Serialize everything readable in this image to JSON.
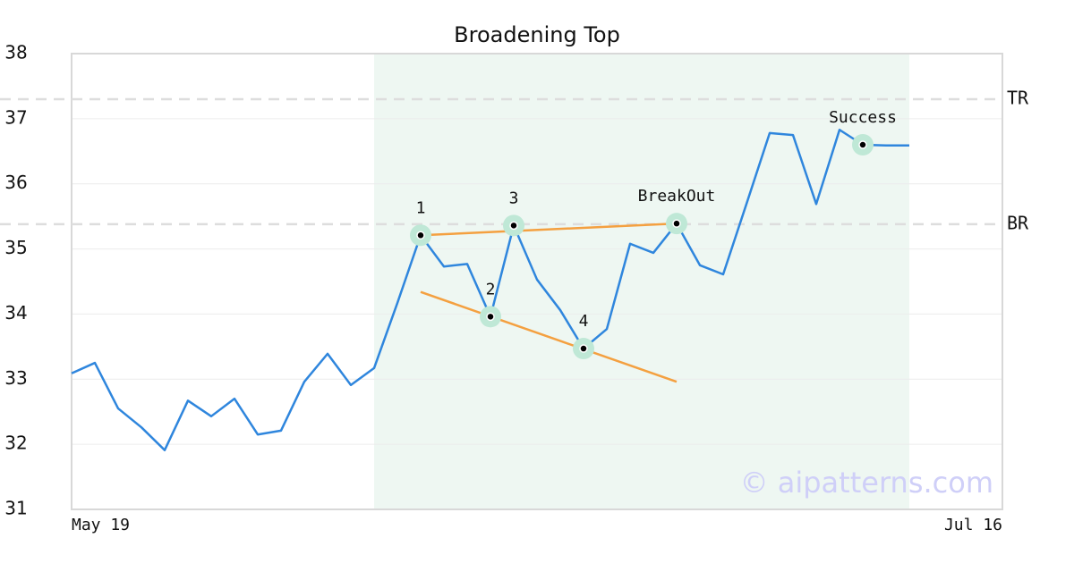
{
  "chart_data": {
    "type": "line",
    "title": "Broadening Top",
    "xlim": [
      0,
      40
    ],
    "xticks": [
      {
        "value": 0,
        "label": "May 19"
      },
      {
        "value": 40,
        "label": "Jul 16"
      }
    ],
    "ylim": [
      31,
      38
    ],
    "yticks": [
      31,
      32,
      33,
      34,
      35,
      36,
      37,
      38
    ],
    "grid": true,
    "series": [
      {
        "color": "#2f86dd",
        "x": [
          0,
          1,
          2,
          3,
          4,
          5,
          6,
          7,
          8,
          9,
          10,
          11,
          12,
          13,
          14,
          15,
          16,
          17,
          18,
          19,
          20,
          21,
          22,
          23,
          24,
          25,
          26,
          27,
          28,
          29,
          30,
          31,
          32,
          33,
          34,
          35,
          36
        ],
        "values": [
          33.09,
          33.25,
          32.55,
          32.26,
          31.91,
          32.67,
          32.43,
          32.7,
          32.15,
          32.21,
          32.96,
          33.39,
          32.91,
          33.17,
          34.17,
          35.21,
          34.73,
          34.77,
          33.96,
          35.36,
          34.53,
          34.06,
          33.47,
          33.77,
          35.08,
          34.94,
          35.39,
          34.75,
          34.61,
          35.69,
          36.78,
          36.75,
          35.69,
          36.83,
          36.6,
          36.59,
          36.59
        ]
      }
    ],
    "highlight": {
      "x": [
        13,
        36
      ],
      "color": "#eef7f2"
    },
    "hlines": [
      {
        "label": "TR",
        "y": 37.3,
        "color": "#dddddd"
      },
      {
        "label": "BR",
        "y": 35.38,
        "color": "#dddddd"
      }
    ],
    "trendlines": [
      {
        "x": [
          15,
          26
        ],
        "y": [
          35.21,
          35.39
        ],
        "color": "#f4a040"
      },
      {
        "x": [
          15,
          26
        ],
        "y": [
          34.34,
          32.96
        ],
        "color": "#f4a040"
      }
    ],
    "annotations": [
      {
        "label": "1",
        "x": 15,
        "y": 35.21
      },
      {
        "label": "2",
        "x": 18,
        "y": 33.96
      },
      {
        "label": "3",
        "x": 19,
        "y": 35.36
      },
      {
        "label": "4",
        "x": 22,
        "y": 33.47
      },
      {
        "label": "BreakOut",
        "x": 26,
        "y": 35.39
      },
      {
        "label": "Success",
        "x": 34,
        "y": 36.6
      }
    ],
    "watermark": "© aipatterns.com"
  }
}
